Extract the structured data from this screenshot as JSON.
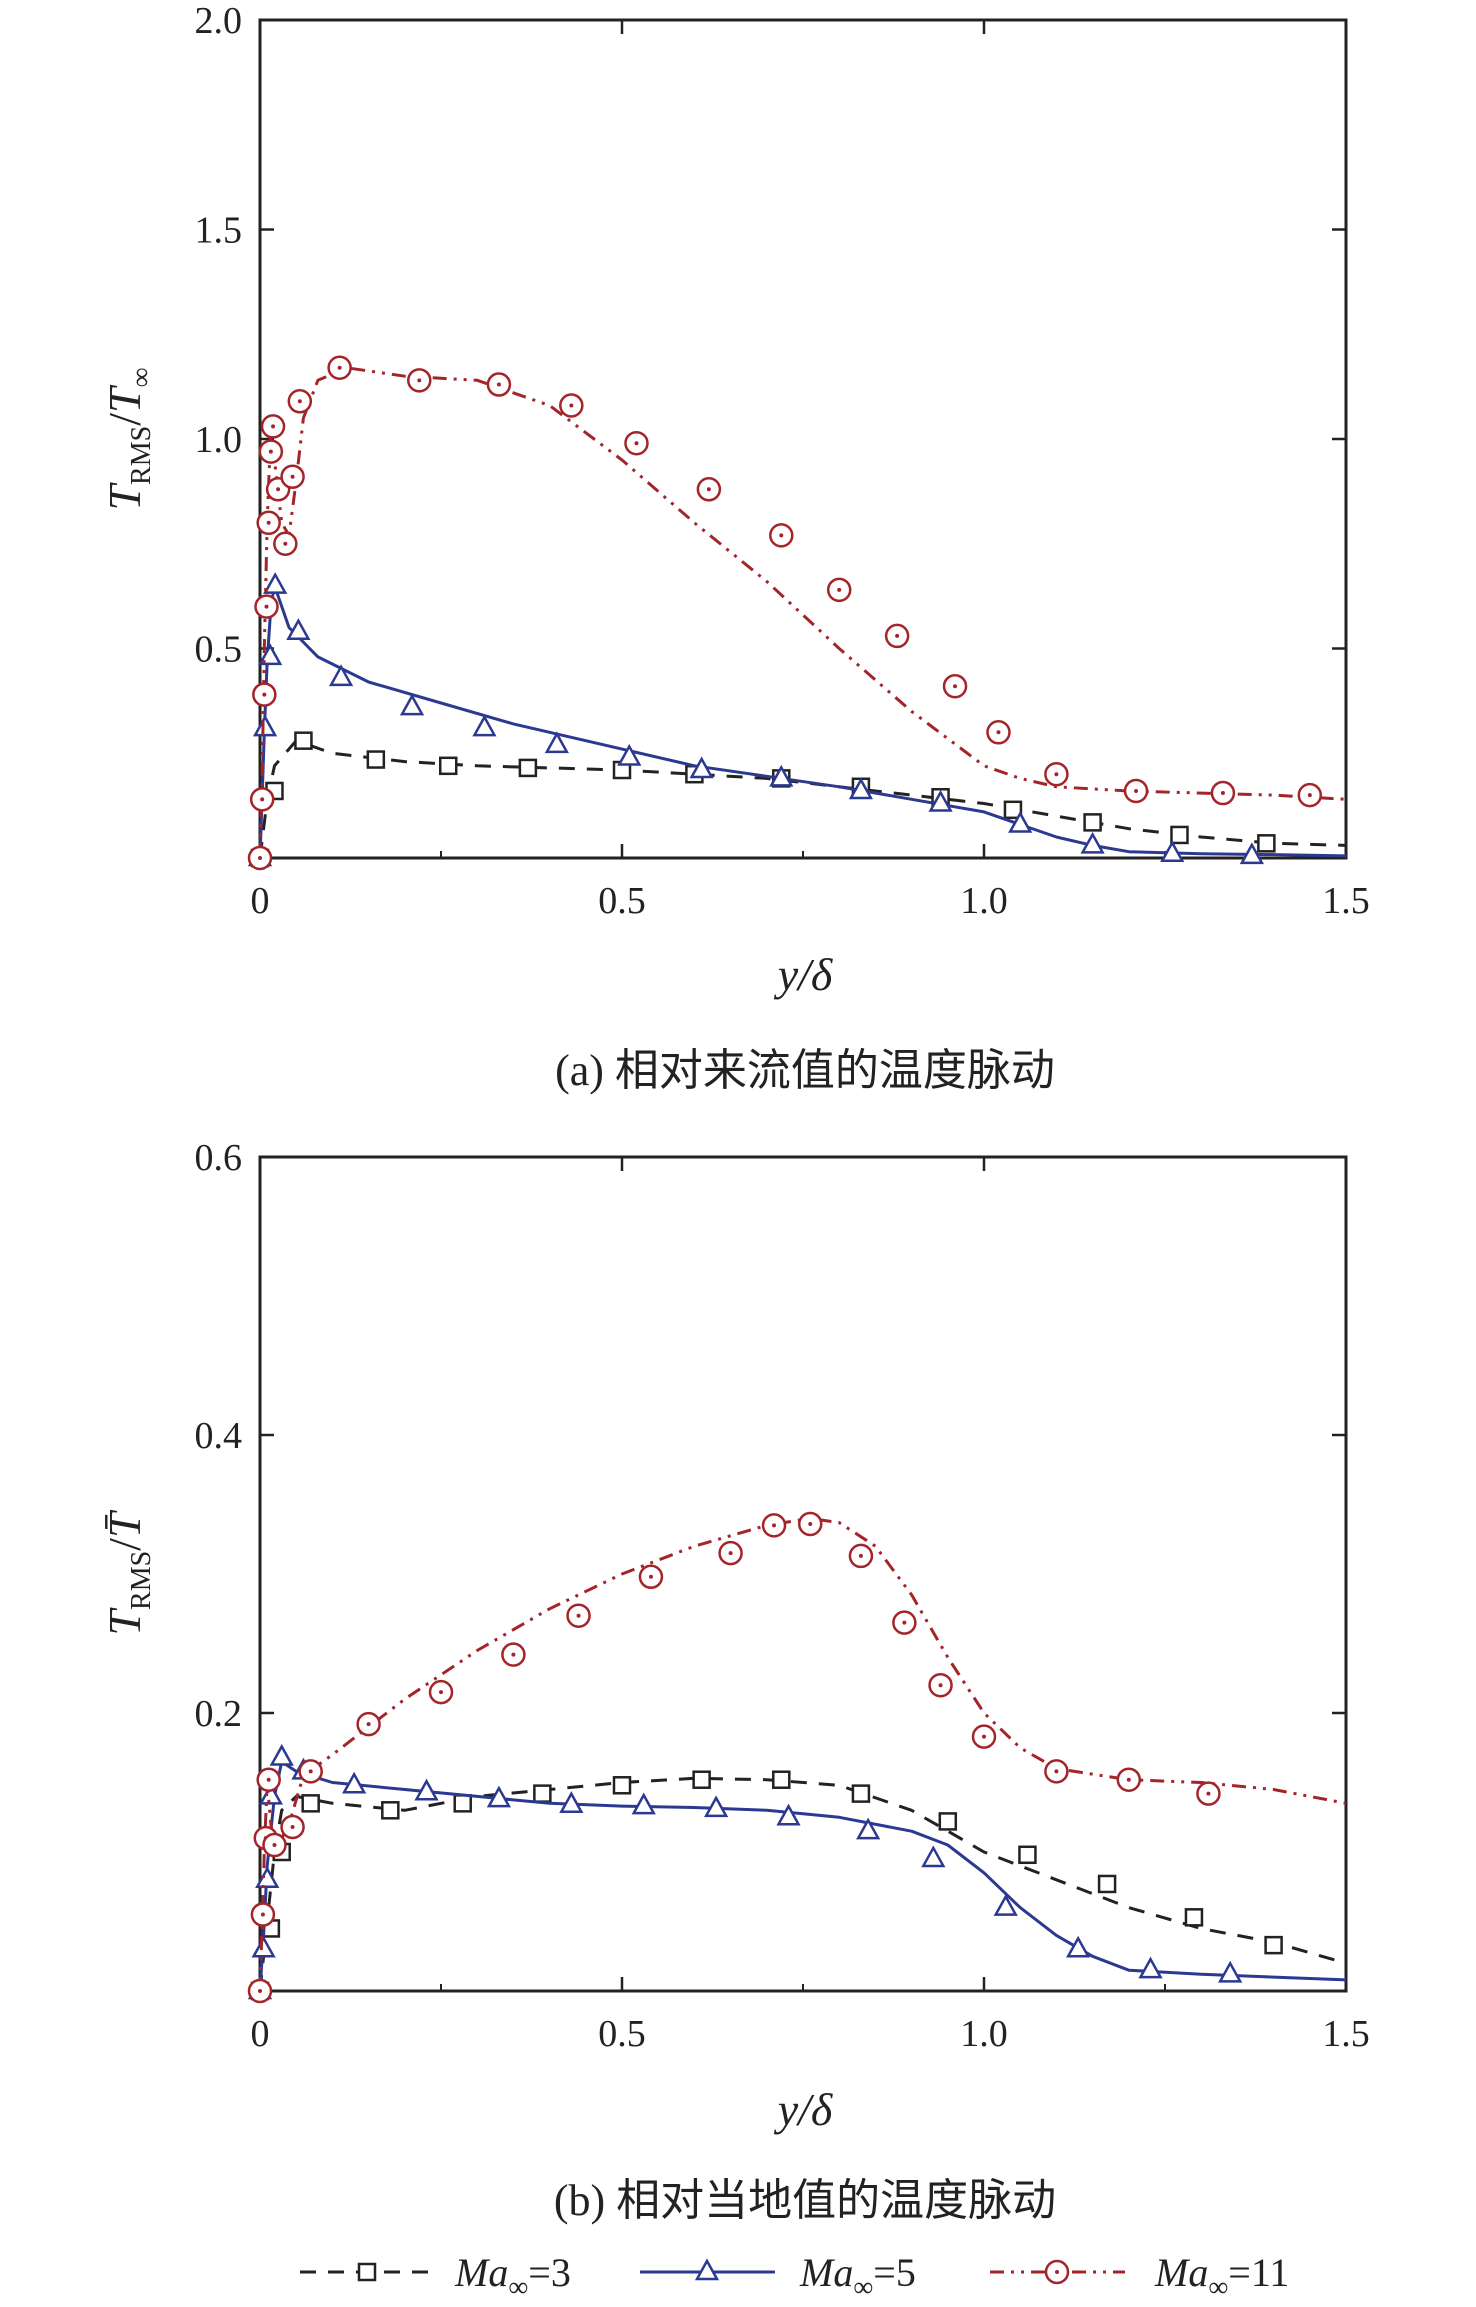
{
  "colors": {
    "ma3": "#222222",
    "ma5": "#2b3990",
    "ma11": "#a3252a",
    "axis": "#222222"
  },
  "legend": [
    {
      "prefix": "Ma",
      "sub": "∞",
      "suffix": "=3",
      "series": "ma3",
      "marker": "square",
      "dash": "dashed"
    },
    {
      "prefix": "Ma",
      "sub": "∞",
      "suffix": "=5",
      "series": "ma5",
      "marker": "triangle",
      "dash": "solid"
    },
    {
      "prefix": "Ma",
      "sub": "∞",
      "suffix": "=11",
      "series": "ma11",
      "marker": "circle",
      "dash": "dashdotdot"
    }
  ],
  "chart_data": [
    {
      "type": "line",
      "caption": "(a) 相对来流值的温度脉动",
      "xlabel": "y/δ",
      "ylabel": {
        "main": "T",
        "sub": "RMS",
        "sep": "/",
        "den": "T",
        "den_sub": "∞"
      },
      "xlim": [
        0,
        1.5
      ],
      "ylim": [
        0,
        2.0
      ],
      "xticks": [
        "0",
        "0.5",
        "1.0",
        "1.5"
      ],
      "xtick_values": [
        0,
        0.5,
        1.0,
        1.5
      ],
      "yticks": [
        "0.5",
        "1.0",
        "1.5",
        "2.0"
      ],
      "ytick_values": [
        0.5,
        1.0,
        1.5,
        2.0
      ],
      "series": [
        {
          "key": "ma3",
          "x": [
            0,
            0.01,
            0.02,
            0.05,
            0.1,
            0.2,
            0.3,
            0.4,
            0.5,
            0.6,
            0.7,
            0.8,
            0.9,
            1.0,
            1.1,
            1.2,
            1.3,
            1.4,
            1.5
          ],
          "y": [
            0,
            0.14,
            0.22,
            0.28,
            0.25,
            0.23,
            0.22,
            0.215,
            0.21,
            0.2,
            0.19,
            0.17,
            0.15,
            0.13,
            0.1,
            0.07,
            0.05,
            0.035,
            0.03
          ],
          "mx": [
            0,
            0.02,
            0.06,
            0.16,
            0.26,
            0.37,
            0.5,
            0.6,
            0.72,
            0.83,
            0.94,
            1.04,
            1.15,
            1.27,
            1.39
          ],
          "my": [
            0,
            0.16,
            0.28,
            0.235,
            0.22,
            0.215,
            0.21,
            0.2,
            0.19,
            0.17,
            0.145,
            0.115,
            0.085,
            0.055,
            0.035
          ]
        },
        {
          "key": "ma5",
          "x": [
            0,
            0.003,
            0.006,
            0.01,
            0.015,
            0.02,
            0.04,
            0.08,
            0.15,
            0.25,
            0.35,
            0.5,
            0.6,
            0.7,
            0.8,
            0.9,
            1.0,
            1.05,
            1.1,
            1.15,
            1.2,
            1.3,
            1.4,
            1.5
          ],
          "y": [
            0,
            0.15,
            0.3,
            0.47,
            0.6,
            0.65,
            0.55,
            0.48,
            0.42,
            0.37,
            0.32,
            0.26,
            0.22,
            0.195,
            0.17,
            0.14,
            0.11,
            0.08,
            0.05,
            0.03,
            0.015,
            0.01,
            0.008,
            0.005
          ],
          "mx": [
            0,
            0.007,
            0.014,
            0.021,
            0.053,
            0.112,
            0.21,
            0.31,
            0.41,
            0.51,
            0.61,
            0.72,
            0.83,
            0.94,
            1.05,
            1.15,
            1.26,
            1.37
          ],
          "my": [
            0.0,
            0.31,
            0.48,
            0.65,
            0.54,
            0.43,
            0.36,
            0.31,
            0.27,
            0.24,
            0.21,
            0.19,
            0.16,
            0.13,
            0.08,
            0.03,
            0.01,
            0.005
          ]
        },
        {
          "key": "ma11",
          "x": [
            0,
            0.003,
            0.006,
            0.01,
            0.015,
            0.02,
            0.03,
            0.04,
            0.05,
            0.06,
            0.08,
            0.12,
            0.2,
            0.3,
            0.4,
            0.5,
            0.6,
            0.7,
            0.8,
            0.9,
            1.0,
            1.05,
            1.1,
            1.2,
            1.3,
            1.4,
            1.5
          ],
          "y": [
            0,
            0.2,
            0.5,
            0.8,
            1.03,
            0.95,
            0.8,
            0.77,
            0.9,
            1.05,
            1.14,
            1.17,
            1.15,
            1.14,
            1.08,
            0.95,
            0.8,
            0.66,
            0.5,
            0.35,
            0.22,
            0.19,
            0.17,
            0.16,
            0.155,
            0.15,
            0.14
          ],
          "mx": [
            0,
            0.003,
            0.006,
            0.009,
            0.012,
            0.015,
            0.018,
            0.025,
            0.035,
            0.045,
            0.055,
            0.11,
            0.22,
            0.33,
            0.43,
            0.52,
            0.62,
            0.72,
            0.8,
            0.88,
            0.96,
            1.02,
            1.1,
            1.21,
            1.33,
            1.45
          ],
          "my": [
            0,
            0.14,
            0.39,
            0.6,
            0.8,
            0.97,
            1.03,
            0.88,
            0.75,
            0.91,
            1.09,
            1.17,
            1.14,
            1.13,
            1.08,
            0.99,
            0.88,
            0.77,
            0.64,
            0.53,
            0.41,
            0.3,
            0.2,
            0.16,
            0.155,
            0.15
          ]
        }
      ]
    },
    {
      "type": "line",
      "caption": "(b) 相对当地值的温度脉动",
      "xlabel": "y/δ",
      "ylabel": {
        "main": "T",
        "sub": "RMS",
        "sep": "/",
        "den": "T̄",
        "den_sub": ""
      },
      "xlim": [
        0,
        1.5
      ],
      "ylim": [
        0,
        0.6
      ],
      "xticks": [
        "0",
        "0.5",
        "1.0",
        "1.5"
      ],
      "xtick_values": [
        0,
        0.5,
        1.0,
        1.5
      ],
      "yticks": [
        "0.2",
        "0.4",
        "0.6"
      ],
      "ytick_values": [
        0.2,
        0.4,
        0.6
      ],
      "series": [
        {
          "key": "ma3",
          "x": [
            0,
            0.01,
            0.02,
            0.03,
            0.05,
            0.1,
            0.2,
            0.3,
            0.4,
            0.5,
            0.6,
            0.7,
            0.8,
            0.9,
            1.0,
            1.1,
            1.2,
            1.3,
            1.4,
            1.5
          ],
          "y": [
            0,
            0.05,
            0.1,
            0.13,
            0.14,
            0.135,
            0.13,
            0.14,
            0.145,
            0.15,
            0.153,
            0.152,
            0.148,
            0.13,
            0.1,
            0.08,
            0.06,
            0.045,
            0.035,
            0.02
          ],
          "mx": [
            0,
            0.015,
            0.03,
            0.07,
            0.18,
            0.28,
            0.39,
            0.5,
            0.61,
            0.72,
            0.83,
            0.95,
            1.06,
            1.17,
            1.29,
            1.4
          ],
          "my": [
            0,
            0.045,
            0.1,
            0.135,
            0.13,
            0.135,
            0.142,
            0.148,
            0.152,
            0.152,
            0.142,
            0.122,
            0.098,
            0.077,
            0.053,
            0.033
          ]
        },
        {
          "key": "ma5",
          "x": [
            0,
            0.005,
            0.01,
            0.02,
            0.03,
            0.05,
            0.1,
            0.2,
            0.3,
            0.4,
            0.5,
            0.6,
            0.7,
            0.8,
            0.9,
            0.95,
            1.0,
            1.05,
            1.1,
            1.15,
            1.2,
            1.3,
            1.4,
            1.5
          ],
          "y": [
            0,
            0.04,
            0.09,
            0.14,
            0.165,
            0.158,
            0.15,
            0.145,
            0.14,
            0.135,
            0.133,
            0.132,
            0.13,
            0.125,
            0.115,
            0.105,
            0.085,
            0.06,
            0.04,
            0.025,
            0.015,
            0.012,
            0.01,
            0.008
          ],
          "mx": [
            0,
            0.005,
            0.01,
            0.015,
            0.03,
            0.06,
            0.13,
            0.23,
            0.33,
            0.43,
            0.53,
            0.63,
            0.73,
            0.84,
            0.93,
            1.03,
            1.13,
            1.23,
            1.34
          ],
          "my": [
            0,
            0.03,
            0.08,
            0.14,
            0.168,
            0.158,
            0.148,
            0.143,
            0.138,
            0.134,
            0.133,
            0.131,
            0.125,
            0.115,
            0.095,
            0.06,
            0.03,
            0.015,
            0.012
          ]
        },
        {
          "key": "ma11",
          "x": [
            0,
            0.003,
            0.006,
            0.01,
            0.015,
            0.02,
            0.04,
            0.06,
            0.1,
            0.2,
            0.3,
            0.4,
            0.5,
            0.6,
            0.7,
            0.76,
            0.8,
            0.85,
            0.9,
            0.95,
            1.0,
            1.05,
            1.1,
            1.2,
            1.3,
            1.4,
            1.5
          ],
          "y": [
            0,
            0.05,
            0.1,
            0.15,
            0.12,
            0.1,
            0.12,
            0.155,
            0.17,
            0.21,
            0.245,
            0.275,
            0.3,
            0.32,
            0.335,
            0.34,
            0.337,
            0.32,
            0.285,
            0.24,
            0.2,
            0.175,
            0.16,
            0.152,
            0.15,
            0.145,
            0.135
          ],
          "mx": [
            0,
            0.004,
            0.008,
            0.012,
            0.02,
            0.045,
            0.07,
            0.15,
            0.25,
            0.35,
            0.44,
            0.54,
            0.65,
            0.71,
            0.76,
            0.83,
            0.89,
            0.94,
            1.0,
            1.1,
            1.2,
            1.31
          ],
          "my": [
            0,
            0.055,
            0.11,
            0.152,
            0.105,
            0.118,
            0.158,
            0.192,
            0.215,
            0.242,
            0.27,
            0.298,
            0.315,
            0.335,
            0.336,
            0.313,
            0.265,
            0.22,
            0.183,
            0.158,
            0.152,
            0.142
          ]
        }
      ]
    }
  ]
}
